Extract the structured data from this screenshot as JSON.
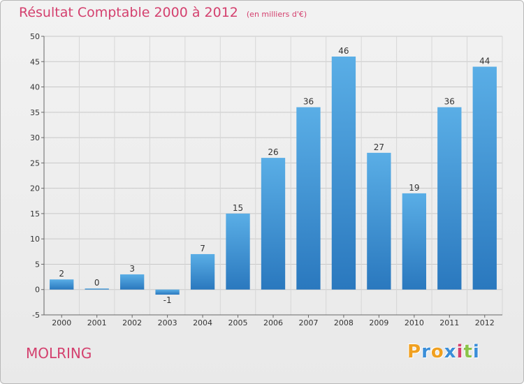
{
  "title": "Résultat Comptable 2000 à 2012",
  "subtitle": "(en milliers d'€)",
  "commune": "MOLRING",
  "logo": {
    "letters": [
      "P",
      "r",
      "o",
      "x",
      "i",
      "t",
      "i"
    ],
    "colors": [
      "#f0a020",
      "#3b8ed8",
      "#f0a020",
      "#3b8ed8",
      "#d4406e",
      "#8bc34a",
      "#3b8ed8"
    ]
  },
  "colors": {
    "accent": "#d4406e",
    "bar_top": "#5aaee6",
    "bar_bottom": "#2a78be"
  },
  "chart_data": {
    "type": "bar",
    "title": "Résultat Comptable 2000 à 2012",
    "subtitle": "(en milliers d'€)",
    "categories": [
      "2000",
      "2001",
      "2002",
      "2003",
      "2004",
      "2005",
      "2006",
      "2007",
      "2008",
      "2009",
      "2010",
      "2011",
      "2012"
    ],
    "values": [
      2,
      0,
      3,
      -1,
      7,
      15,
      26,
      36,
      46,
      27,
      19,
      36,
      44
    ],
    "ylim": [
      -5,
      50
    ],
    "yticks": [
      -5,
      0,
      5,
      10,
      15,
      20,
      25,
      30,
      35,
      40,
      45,
      50
    ],
    "grid": true,
    "legend": "none"
  }
}
